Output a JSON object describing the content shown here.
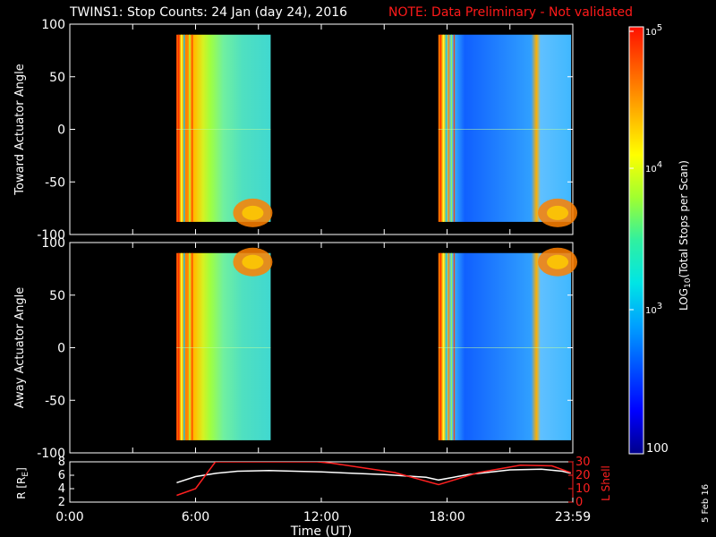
{
  "title": {
    "main": "TWINS1: Stop Counts: 24 Jan (day  24), 2016",
    "note": "NOTE: Data Preliminary - Not validated",
    "note_color": "#ff1a1a"
  },
  "footer_date": "5 Feb 16",
  "chart_data": [
    {
      "type": "heatmap",
      "ylabel": "Toward Actuator Angle",
      "ylim": [
        -100,
        100
      ],
      "yticks": [
        "100",
        "50",
        "0",
        "-50",
        "-100"
      ],
      "xlim_hours": [
        0,
        24
      ],
      "data_blocks": [
        {
          "t_start": "5:05",
          "t_end": "9:35",
          "angle_range": [
            -88,
            90
          ]
        },
        {
          "t_start": "17:35",
          "t_end": "23:55",
          "angle_range": [
            -88,
            90
          ]
        }
      ]
    },
    {
      "type": "heatmap",
      "ylabel": "Away Actuator Angle",
      "ylim": [
        -100,
        100
      ],
      "yticks": [
        "100",
        "50",
        "0",
        "-50",
        "-100"
      ],
      "xlim_hours": [
        0,
        24
      ],
      "data_blocks": [
        {
          "t_start": "5:05",
          "t_end": "9:35",
          "angle_range": [
            -88,
            90
          ]
        },
        {
          "t_start": "17:35",
          "t_end": "23:55",
          "angle_range": [
            -88,
            90
          ]
        }
      ]
    },
    {
      "type": "line",
      "ylabel": "R [R",
      "ylabel_sub": "E",
      "ylabel_close": "]",
      "y2label": "L Shell",
      "ylim": [
        2,
        8
      ],
      "y2lim": [
        0,
        30
      ],
      "yticks": [
        "8",
        "6",
        "4",
        "2"
      ],
      "y2ticks": [
        "30",
        "20",
        "10",
        "0"
      ],
      "xlabel": "Time (UT)",
      "xticks": [
        "0:00",
        "6:00",
        "12:00",
        "18:00",
        "23:59"
      ],
      "series": [
        {
          "color": "#ffffff",
          "x": [
            5.1,
            6.0,
            7.0,
            8.0,
            9.5,
            12.0,
            15.0,
            17.0,
            17.6,
            19.0,
            21.0,
            22.5,
            23.5,
            23.9
          ],
          "y": [
            4.9,
            5.8,
            6.3,
            6.6,
            6.7,
            6.5,
            6.1,
            5.7,
            5.3,
            6.1,
            6.8,
            6.9,
            6.6,
            6.3
          ]
        },
        {
          "color": "#ff2020",
          "axis": "right",
          "x": [
            5.1,
            6.0,
            6.95,
            11.8,
            12.5,
            15.5,
            17.6,
            19.5,
            21.5,
            23.0,
            23.9
          ],
          "y": [
            5.0,
            10.0,
            30.0,
            30.0,
            29.0,
            22.0,
            13.0,
            22.0,
            27.5,
            27.0,
            22.0
          ]
        }
      ]
    }
  ],
  "colorbar": {
    "label_prefix": "LOG",
    "label_sub": "10",
    "label_suffix": "(Total Stops per Scan)",
    "tick_max_base": "10",
    "tick_max_exp": "5",
    "tick_mid_base": "10",
    "tick_mid_exp": "4",
    "tick_low_base": "10",
    "tick_low_exp": "3",
    "tick_min": "100",
    "colors": [
      "#00008b",
      "#0000ff",
      "#0050ff",
      "#00a0ff",
      "#00e5e5",
      "#30f0a0",
      "#a0ff30",
      "#ffff00",
      "#ffb000",
      "#ff6000",
      "#ff1000"
    ]
  }
}
